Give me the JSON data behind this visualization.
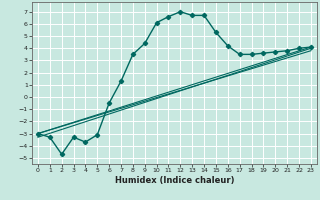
{
  "xlabel": "Humidex (Indice chaleur)",
  "bg_color": "#c8e8e0",
  "grid_color": "#ffffff",
  "line_color": "#006860",
  "xlim": [
    -0.5,
    23.5
  ],
  "ylim": [
    -5.5,
    7.8
  ],
  "xticks": [
    0,
    1,
    2,
    3,
    4,
    5,
    6,
    7,
    8,
    9,
    10,
    11,
    12,
    13,
    14,
    15,
    16,
    17,
    18,
    19,
    20,
    21,
    22,
    23
  ],
  "yticks": [
    -5,
    -4,
    -3,
    -2,
    -1,
    0,
    1,
    2,
    3,
    4,
    5,
    6,
    7
  ],
  "main_x": [
    0,
    1,
    2,
    3,
    4,
    5,
    6,
    7,
    8,
    9,
    10,
    11,
    12,
    13,
    14,
    15,
    16,
    17,
    18,
    19,
    20,
    21,
    22,
    23
  ],
  "main_y": [
    -3.0,
    -3.3,
    -4.7,
    -3.3,
    -3.7,
    -3.1,
    -0.5,
    1.3,
    3.5,
    4.4,
    6.1,
    6.6,
    7.0,
    6.7,
    6.7,
    5.3,
    4.2,
    3.5,
    3.5,
    3.6,
    3.7,
    3.8,
    4.0,
    4.1
  ],
  "line1_x": [
    0,
    23
  ],
  "line1_y": [
    -3.0,
    4.1
  ],
  "line2_x": [
    0,
    23
  ],
  "line2_y": [
    -3.3,
    4.0
  ],
  "line3_x": [
    0,
    23
  ],
  "line3_y": [
    -3.0,
    3.8
  ]
}
